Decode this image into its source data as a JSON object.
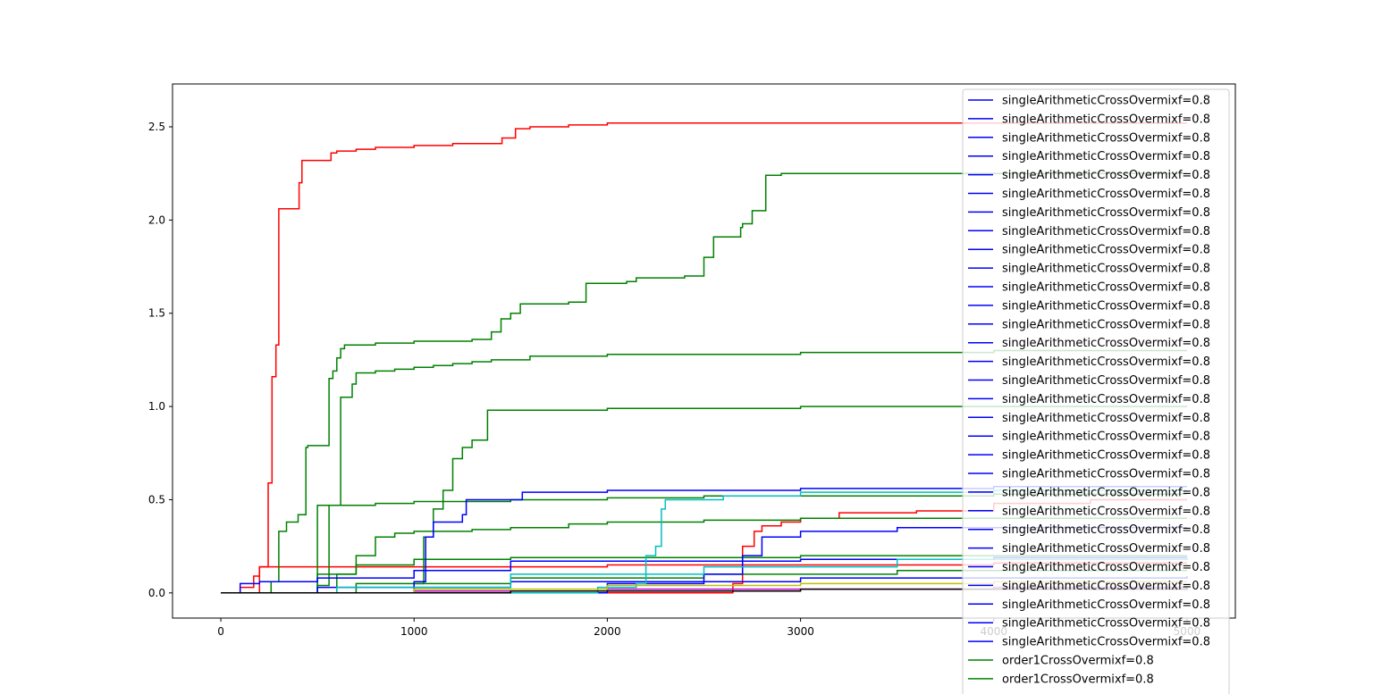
{
  "chart_data": {
    "type": "line",
    "title": "",
    "xlabel": "",
    "ylabel": "",
    "xlim": [
      -250,
      5250
    ],
    "ylim": [
      -0.135,
      2.73
    ],
    "x_ticks": [
      0,
      1000,
      2000,
      3000,
      4000,
      5000
    ],
    "y_ticks": [
      0.0,
      0.5,
      1.0,
      1.5,
      2.0,
      2.5
    ],
    "x_tick_labels": [
      "0",
      "1000",
      "2000",
      "3000",
      "4000",
      "5000"
    ],
    "y_tick_labels": [
      "0.0",
      "0.5",
      "1.0",
      "1.5",
      "2.0",
      "2.5"
    ],
    "grid": false,
    "legend_position": "top-right",
    "legend": [
      {
        "label": "singleArithmeticCrossOvermixf=0.8",
        "color": "#0000ff"
      },
      {
        "label": "singleArithmeticCrossOvermixf=0.8",
        "color": "#0000ff"
      },
      {
        "label": "singleArithmeticCrossOvermixf=0.8",
        "color": "#0000ff"
      },
      {
        "label": "singleArithmeticCrossOvermixf=0.8",
        "color": "#0000ff"
      },
      {
        "label": "singleArithmeticCrossOvermixf=0.8",
        "color": "#0000ff"
      },
      {
        "label": "singleArithmeticCrossOvermixf=0.8",
        "color": "#0000ff"
      },
      {
        "label": "singleArithmeticCrossOvermixf=0.8",
        "color": "#0000ff"
      },
      {
        "label": "singleArithmeticCrossOvermixf=0.8",
        "color": "#0000ff"
      },
      {
        "label": "singleArithmeticCrossOvermixf=0.8",
        "color": "#0000ff"
      },
      {
        "label": "singleArithmeticCrossOvermixf=0.8",
        "color": "#0000ff"
      },
      {
        "label": "singleArithmeticCrossOvermixf=0.8",
        "color": "#0000ff"
      },
      {
        "label": "singleArithmeticCrossOvermixf=0.8",
        "color": "#0000ff"
      },
      {
        "label": "singleArithmeticCrossOvermixf=0.8",
        "color": "#0000ff"
      },
      {
        "label": "singleArithmeticCrossOvermixf=0.8",
        "color": "#0000ff"
      },
      {
        "label": "singleArithmeticCrossOvermixf=0.8",
        "color": "#0000ff"
      },
      {
        "label": "singleArithmeticCrossOvermixf=0.8",
        "color": "#0000ff"
      },
      {
        "label": "singleArithmeticCrossOvermixf=0.8",
        "color": "#0000ff"
      },
      {
        "label": "singleArithmeticCrossOvermixf=0.8",
        "color": "#0000ff"
      },
      {
        "label": "singleArithmeticCrossOvermixf=0.8",
        "color": "#0000ff"
      },
      {
        "label": "singleArithmeticCrossOvermixf=0.8",
        "color": "#0000ff"
      },
      {
        "label": "singleArithmeticCrossOvermixf=0.8",
        "color": "#0000ff"
      },
      {
        "label": "singleArithmeticCrossOvermixf=0.8",
        "color": "#0000ff"
      },
      {
        "label": "singleArithmeticCrossOvermixf=0.8",
        "color": "#0000ff"
      },
      {
        "label": "singleArithmeticCrossOvermixf=0.8",
        "color": "#0000ff"
      },
      {
        "label": "singleArithmeticCrossOvermixf=0.8",
        "color": "#0000ff"
      },
      {
        "label": "singleArithmeticCrossOvermixf=0.8",
        "color": "#0000ff"
      },
      {
        "label": "singleArithmeticCrossOvermixf=0.8",
        "color": "#0000ff"
      },
      {
        "label": "singleArithmeticCrossOvermixf=0.8",
        "color": "#0000ff"
      },
      {
        "label": "singleArithmeticCrossOvermixf=0.8",
        "color": "#0000ff"
      },
      {
        "label": "singleArithmeticCrossOvermixf=0.8",
        "color": "#0000ff"
      },
      {
        "label": "order1CrossOvermixf=0.8",
        "color": "#008000"
      },
      {
        "label": "order1CrossOvermixf=0.8",
        "color": "#008000"
      }
    ],
    "series": [
      {
        "color": "#ff0000",
        "points": [
          [
            0,
            0
          ],
          [
            100,
            0.03
          ],
          [
            170,
            0.09
          ],
          [
            200,
            0.14
          ],
          [
            240,
            0.14
          ],
          [
            245,
            0.59
          ],
          [
            260,
            0.59
          ],
          [
            265,
            1.16
          ],
          [
            280,
            1.16
          ],
          [
            285,
            1.33
          ],
          [
            295,
            1.33
          ],
          [
            300,
            2.06
          ],
          [
            400,
            2.06
          ],
          [
            405,
            2.2
          ],
          [
            420,
            2.32
          ],
          [
            540,
            2.32
          ],
          [
            570,
            2.36
          ],
          [
            600,
            2.37
          ],
          [
            700,
            2.38
          ],
          [
            800,
            2.39
          ],
          [
            1000,
            2.4
          ],
          [
            1200,
            2.41
          ],
          [
            1450,
            2.41
          ],
          [
            1455,
            2.44
          ],
          [
            1520,
            2.44
          ],
          [
            1525,
            2.49
          ],
          [
            1600,
            2.5
          ],
          [
            1800,
            2.51
          ],
          [
            2000,
            2.52
          ],
          [
            3000,
            2.52
          ],
          [
            4000,
            2.52
          ],
          [
            5000,
            2.52
          ]
        ]
      },
      {
        "color": "#ff0000",
        "points": [
          [
            0,
            0
          ],
          [
            1000,
            0
          ],
          [
            2000,
            0
          ],
          [
            2600,
            0
          ],
          [
            2650,
            0.05
          ],
          [
            2700,
            0.25
          ],
          [
            2760,
            0.33
          ],
          [
            2800,
            0.36
          ],
          [
            2900,
            0.38
          ],
          [
            3000,
            0.4
          ],
          [
            3200,
            0.43
          ],
          [
            3600,
            0.44
          ],
          [
            4000,
            0.48
          ],
          [
            4500,
            0.5
          ],
          [
            5000,
            0.5
          ]
        ]
      },
      {
        "color": "#ff0000",
        "points": [
          [
            0,
            0
          ],
          [
            200,
            0.14
          ],
          [
            1000,
            0.14
          ],
          [
            2000,
            0.15
          ],
          [
            3000,
            0.15
          ],
          [
            4000,
            0.16
          ],
          [
            5000,
            0.16
          ]
        ]
      },
      {
        "color": "#008000",
        "points": [
          [
            0,
            0
          ],
          [
            260,
            0.06
          ],
          [
            300,
            0.33
          ],
          [
            340,
            0.38
          ],
          [
            400,
            0.42
          ],
          [
            430,
            0.42
          ],
          [
            440,
            0.78
          ],
          [
            450,
            0.79
          ],
          [
            540,
            0.79
          ],
          [
            560,
            1.15
          ],
          [
            580,
            1.19
          ],
          [
            600,
            1.26
          ],
          [
            620,
            1.31
          ],
          [
            640,
            1.33
          ],
          [
            800,
            1.34
          ],
          [
            1000,
            1.35
          ],
          [
            1300,
            1.36
          ],
          [
            1400,
            1.4
          ],
          [
            1450,
            1.47
          ],
          [
            1500,
            1.5
          ],
          [
            1550,
            1.55
          ],
          [
            1800,
            1.56
          ],
          [
            1890,
            1.66
          ],
          [
            2100,
            1.67
          ],
          [
            2150,
            1.69
          ],
          [
            2400,
            1.7
          ],
          [
            2500,
            1.8
          ],
          [
            2550,
            1.91
          ],
          [
            2690,
            1.96
          ],
          [
            2700,
            1.98
          ],
          [
            2750,
            2.05
          ],
          [
            2820,
            2.24
          ],
          [
            2900,
            2.25
          ],
          [
            4000,
            2.25
          ],
          [
            5000,
            2.25
          ]
        ]
      },
      {
        "color": "#008000",
        "points": [
          [
            0,
            0
          ],
          [
            500,
            0.04
          ],
          [
            560,
            0.47
          ],
          [
            600,
            0.47
          ],
          [
            620,
            1.05
          ],
          [
            640,
            1.05
          ],
          [
            680,
            1.12
          ],
          [
            700,
            1.18
          ],
          [
            800,
            1.19
          ],
          [
            900,
            1.2
          ],
          [
            1000,
            1.21
          ],
          [
            1100,
            1.22
          ],
          [
            1200,
            1.23
          ],
          [
            1300,
            1.24
          ],
          [
            1400,
            1.25
          ],
          [
            1600,
            1.27
          ],
          [
            2000,
            1.28
          ],
          [
            3000,
            1.29
          ],
          [
            4000,
            1.3
          ],
          [
            5000,
            1.3
          ]
        ]
      },
      {
        "color": "#008000",
        "points": [
          [
            0,
            0
          ],
          [
            1000,
            0.05
          ],
          [
            1050,
            0.3
          ],
          [
            1100,
            0.45
          ],
          [
            1150,
            0.55
          ],
          [
            1200,
            0.72
          ],
          [
            1250,
            0.78
          ],
          [
            1300,
            0.82
          ],
          [
            1380,
            0.98
          ],
          [
            1500,
            0.98
          ],
          [
            2000,
            0.99
          ],
          [
            3000,
            1.0
          ],
          [
            4000,
            1.0
          ],
          [
            5000,
            1.0
          ]
        ]
      },
      {
        "color": "#008000",
        "points": [
          [
            0,
            0
          ],
          [
            500,
            0.47
          ],
          [
            800,
            0.48
          ],
          [
            1000,
            0.49
          ],
          [
            1500,
            0.5
          ],
          [
            2000,
            0.51
          ],
          [
            2500,
            0.52
          ],
          [
            3000,
            0.52
          ],
          [
            4000,
            0.53
          ],
          [
            5000,
            0.53
          ]
        ]
      },
      {
        "color": "#008000",
        "points": [
          [
            0,
            0
          ],
          [
            600,
            0.1
          ],
          [
            700,
            0.2
          ],
          [
            800,
            0.3
          ],
          [
            900,
            0.32
          ],
          [
            1000,
            0.33
          ],
          [
            1300,
            0.34
          ],
          [
            1500,
            0.35
          ],
          [
            1800,
            0.37
          ],
          [
            2000,
            0.38
          ],
          [
            2500,
            0.39
          ],
          [
            3000,
            0.4
          ],
          [
            4000,
            0.4
          ],
          [
            5000,
            0.4
          ]
        ]
      },
      {
        "color": "#008000",
        "points": [
          [
            0,
            0
          ],
          [
            500,
            0.1
          ],
          [
            700,
            0.15
          ],
          [
            1000,
            0.18
          ],
          [
            1500,
            0.19
          ],
          [
            2000,
            0.19
          ],
          [
            3000,
            0.2
          ],
          [
            4000,
            0.2
          ],
          [
            5000,
            0.2
          ]
        ]
      },
      {
        "color": "#008000",
        "points": [
          [
            0,
            0
          ],
          [
            700,
            0.05
          ],
          [
            1500,
            0.08
          ],
          [
            2500,
            0.1
          ],
          [
            3500,
            0.12
          ],
          [
            5000,
            0.12
          ]
        ]
      },
      {
        "color": "#0000ff",
        "points": [
          [
            0,
            0
          ],
          [
            1000,
            0.06
          ],
          [
            1060,
            0.3
          ],
          [
            1100,
            0.38
          ],
          [
            1250,
            0.42
          ],
          [
            1270,
            0.5
          ],
          [
            1500,
            0.5
          ],
          [
            1560,
            0.54
          ],
          [
            2000,
            0.55
          ],
          [
            3000,
            0.56
          ],
          [
            4000,
            0.57
          ],
          [
            5000,
            0.57
          ]
        ]
      },
      {
        "color": "#0000ff",
        "points": [
          [
            0,
            0
          ],
          [
            2000,
            0.05
          ],
          [
            2500,
            0.1
          ],
          [
            2700,
            0.2
          ],
          [
            2800,
            0.3
          ],
          [
            3000,
            0.33
          ],
          [
            3500,
            0.35
          ],
          [
            4000,
            0.35
          ],
          [
            5000,
            0.35
          ]
        ]
      },
      {
        "color": "#0000ff",
        "points": [
          [
            0,
            0
          ],
          [
            100,
            0.05
          ],
          [
            200,
            0.06
          ],
          [
            500,
            0.08
          ],
          [
            1000,
            0.12
          ],
          [
            1500,
            0.17
          ],
          [
            2000,
            0.17
          ],
          [
            3000,
            0.18
          ],
          [
            4000,
            0.19
          ],
          [
            5000,
            0.19
          ]
        ]
      },
      {
        "color": "#0000ff",
        "points": [
          [
            0,
            0
          ],
          [
            500,
            0.03
          ],
          [
            1500,
            0.06
          ],
          [
            3000,
            0.08
          ],
          [
            5000,
            0.09
          ]
        ]
      },
      {
        "color": "#00bfbf",
        "points": [
          [
            0,
            0
          ],
          [
            1900,
            0
          ],
          [
            1950,
            0.03
          ],
          [
            2150,
            0.05
          ],
          [
            2200,
            0.2
          ],
          [
            2250,
            0.25
          ],
          [
            2280,
            0.45
          ],
          [
            2300,
            0.5
          ],
          [
            2600,
            0.52
          ],
          [
            3000,
            0.54
          ],
          [
            4000,
            0.55
          ],
          [
            5000,
            0.55
          ]
        ]
      },
      {
        "color": "#00bfbf",
        "points": [
          [
            0,
            0
          ],
          [
            600,
            0.03
          ],
          [
            1500,
            0.1
          ],
          [
            2500,
            0.14
          ],
          [
            3500,
            0.18
          ],
          [
            5000,
            0.19
          ]
        ]
      },
      {
        "color": "#bf00bf",
        "points": [
          [
            0,
            0
          ],
          [
            1000,
            0.01
          ],
          [
            2000,
            0.02
          ],
          [
            3000,
            0.02
          ],
          [
            4000,
            0.03
          ],
          [
            5000,
            0.03
          ]
        ]
      },
      {
        "color": "#bfbf00",
        "points": [
          [
            0,
            0
          ],
          [
            1000,
            0.02
          ],
          [
            2000,
            0.04
          ],
          [
            3000,
            0.05
          ],
          [
            4000,
            0.06
          ],
          [
            5000,
            0.06
          ]
        ]
      },
      {
        "color": "#000000",
        "points": [
          [
            0,
            0
          ],
          [
            1500,
            0.01
          ],
          [
            3000,
            0.02
          ],
          [
            5000,
            0.03
          ]
        ]
      }
    ]
  }
}
